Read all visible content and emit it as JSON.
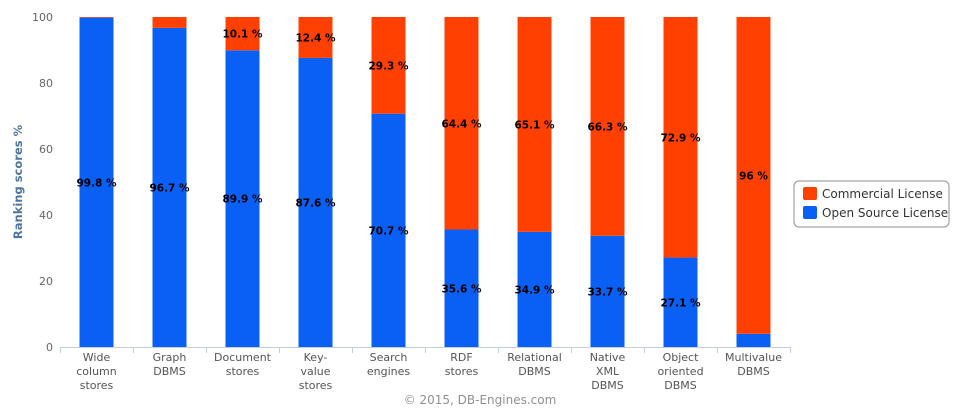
{
  "chart_data": {
    "type": "bar",
    "stacked": true,
    "categories": [
      [
        "Wide",
        "column",
        "stores"
      ],
      [
        "Graph",
        "DBMS"
      ],
      [
        "Document",
        "stores"
      ],
      [
        "Key-",
        "value",
        "stores"
      ],
      [
        "Search",
        "engines"
      ],
      [
        "RDF",
        "stores"
      ],
      [
        "Relational",
        "DBMS"
      ],
      [
        "Native",
        "XML",
        "DBMS"
      ],
      [
        "Object",
        "oriented",
        "DBMS"
      ],
      [
        "Multivalue",
        "DBMS"
      ]
    ],
    "series": [
      {
        "name": "Open Source License",
        "color": "#0a5ff5",
        "values": [
          99.8,
          96.7,
          89.9,
          87.6,
          70.7,
          35.6,
          34.9,
          33.7,
          27.1,
          4
        ],
        "labels": [
          "99.8 %",
          "96.7 %",
          "89.9 %",
          "87.6 %",
          "70.7 %",
          "35.6 %",
          "34.9 %",
          "33.7 %",
          "27.1 %",
          ""
        ]
      },
      {
        "name": "Commercial License",
        "color": "#ff4000",
        "values": [
          0.2,
          3.3,
          10.1,
          12.4,
          29.3,
          64.4,
          65.1,
          66.3,
          72.9,
          96
        ],
        "labels": [
          "",
          "",
          "10.1 %",
          "12.4 %",
          "29.3 %",
          "64.4 %",
          "65.1 %",
          "66.3 %",
          "72.9 %",
          "96 %"
        ]
      }
    ],
    "ylabel": "Ranking scores %",
    "ylim": [
      0,
      100
    ],
    "yticks": [
      0,
      20,
      40,
      60,
      80,
      100
    ],
    "grid": false,
    "legend": {
      "position": "right",
      "order": [
        "Commercial License",
        "Open Source License"
      ]
    },
    "credit": "© 2015, DB-Engines.com"
  }
}
